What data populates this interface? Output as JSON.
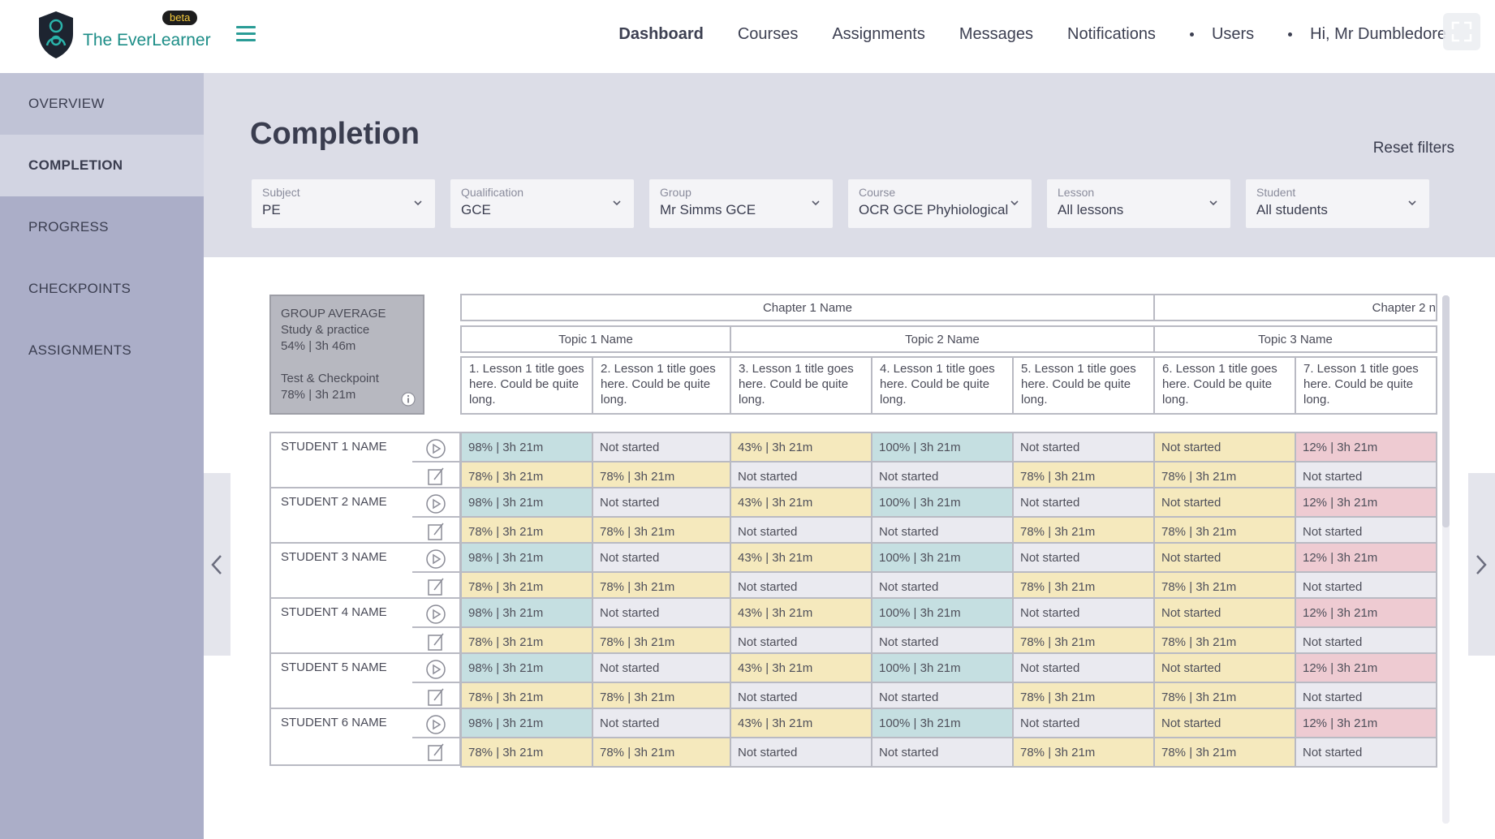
{
  "app": {
    "logo_text": "The EverLearner",
    "beta_label": "beta"
  },
  "nav": {
    "dashboard": "Dashboard",
    "courses": "Courses",
    "assignments": "Assignments",
    "messages": "Messages",
    "notifications": "Notifications",
    "users": "Users",
    "greeting": "Hi, Mr Dumbledore"
  },
  "sidebar": {
    "items": [
      {
        "label": "OVERVIEW"
      },
      {
        "label": "COMPLETION"
      },
      {
        "label": "PROGRESS"
      },
      {
        "label": "CHECKPOINTS"
      },
      {
        "label": "ASSIGNMENTS"
      }
    ]
  },
  "page": {
    "title": "Completion",
    "reset": "Reset filters"
  },
  "filters": [
    {
      "label": "Subject",
      "value": "PE"
    },
    {
      "label": "Qualification",
      "value": "GCE"
    },
    {
      "label": "Group",
      "value": "Mr Simms GCE"
    },
    {
      "label": "Course",
      "value": "OCR GCE Phyhiological"
    },
    {
      "label": "Lesson",
      "value": "All lessons"
    },
    {
      "label": "Student",
      "value": "All students"
    }
  ],
  "group_average": {
    "title": "GROUP AVERAGE",
    "study_label": "Study & practice",
    "study_value": "54% | 3h 46m",
    "test_label": "Test & Checkpoint",
    "test_value": "78% | 3h 21m"
  },
  "chapters": [
    "Chapter 1 Name",
    "Chapter 2 n"
  ],
  "topics": [
    "Topic 1 Name",
    "Topic 2 Name",
    "Topic 3 Name"
  ],
  "lessons": [
    "1. Lesson 1 title goes here. Could be quite long.",
    "2. Lesson 1 title goes here. Could be quite long.",
    "3. Lesson 1 title goes here. Could be quite long.",
    "4. Lesson 1 title goes here. Could be quite long.",
    "5. Lesson 1 title goes here. Could be quite long.",
    "6. Lesson 1 title goes here. Could be quite long.",
    "7. Lesson 1 title goes here. Could be quite long."
  ],
  "students": [
    {
      "name": "STUDENT 1 NAME",
      "study": [
        "98% | 3h 21m",
        "Not started",
        "43% | 3h 21m",
        "100% | 3h 21m",
        "Not started",
        "Not started",
        "12% | 3h 21m"
      ],
      "test": [
        "78% | 3h 21m",
        "78% | 3h 21m",
        "Not started",
        "Not started",
        "78% | 3h 21m",
        "78% | 3h 21m",
        "Not started"
      ]
    },
    {
      "name": "STUDENT 2 NAME",
      "study": [
        "98% | 3h 21m",
        "Not started",
        "43% | 3h 21m",
        "100% | 3h 21m",
        "Not started",
        "Not started",
        "12% | 3h 21m"
      ],
      "test": [
        "78% | 3h 21m",
        "78% | 3h 21m",
        "Not started",
        "Not started",
        "78% | 3h 21m",
        "78% | 3h 21m",
        "Not started"
      ]
    },
    {
      "name": "STUDENT 3 NAME",
      "study": [
        "98% | 3h 21m",
        "Not started",
        "43% | 3h 21m",
        "100% | 3h 21m",
        "Not started",
        "Not started",
        "12% | 3h 21m"
      ],
      "test": [
        "78% | 3h 21m",
        "78% | 3h 21m",
        "Not started",
        "Not started",
        "78% | 3h 21m",
        "78% | 3h 21m",
        "Not started"
      ]
    },
    {
      "name": "STUDENT 4 NAME",
      "study": [
        "98% | 3h 21m",
        "Not started",
        "43% | 3h 21m",
        "100% | 3h 21m",
        "Not started",
        "Not started",
        "12% | 3h 21m"
      ],
      "test": [
        "78% | 3h 21m",
        "78% | 3h 21m",
        "Not started",
        "Not started",
        "78% | 3h 21m",
        "78% | 3h 21m",
        "Not started"
      ]
    },
    {
      "name": "STUDENT 5 NAME",
      "study": [
        "98% | 3h 21m",
        "Not started",
        "43% | 3h 21m",
        "100% | 3h 21m",
        "Not started",
        "Not started",
        "12% | 3h 21m"
      ],
      "test": [
        "78% | 3h 21m",
        "78% | 3h 21m",
        "Not started",
        "Not started",
        "78% | 3h 21m",
        "78% | 3h 21m",
        "Not started"
      ]
    },
    {
      "name": "STUDENT 6 NAME",
      "study": [
        "98% | 3h 21m",
        "Not started",
        "43% | 3h 21m",
        "100% | 3h 21m",
        "Not started",
        "Not started",
        "12% | 3h 21m"
      ],
      "test": [
        "78% | 3h 21m",
        "78% | 3h 21m",
        "Not started",
        "Not started",
        "78% | 3h 21m",
        "78% | 3h 21m",
        "Not started"
      ]
    }
  ],
  "colors": {
    "brand": "#1c8d87",
    "cell_teal": "#c5dfe1",
    "cell_yellow": "#f5e9bd",
    "cell_grey": "#eaeaf0",
    "cell_pink": "#eecbd2"
  },
  "icons": {
    "logo": "shield-logo-icon",
    "menu": "hamburger-menu-icon",
    "expand": "expand-icon",
    "dropdown": "chevron-down-icon",
    "info": "info-icon",
    "study": "play-circle-icon",
    "test": "edit-note-icon",
    "prev": "chevron-left-icon",
    "next": "chevron-right-icon"
  }
}
